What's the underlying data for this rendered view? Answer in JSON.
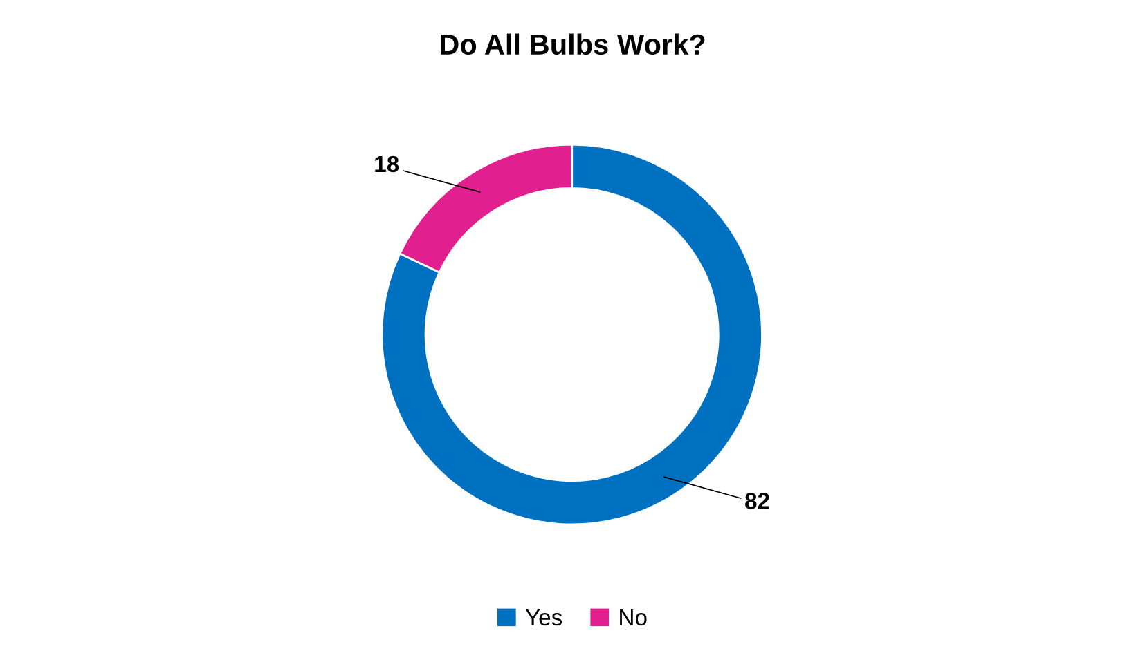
{
  "chart_data": {
    "type": "donut",
    "title": "Do All Bulbs Work?",
    "categories": [
      "Yes",
      "No"
    ],
    "values": [
      82,
      18
    ],
    "colors": [
      "#0070c0",
      "#e21f8f"
    ],
    "data_labels": true,
    "legend": "bottom"
  }
}
